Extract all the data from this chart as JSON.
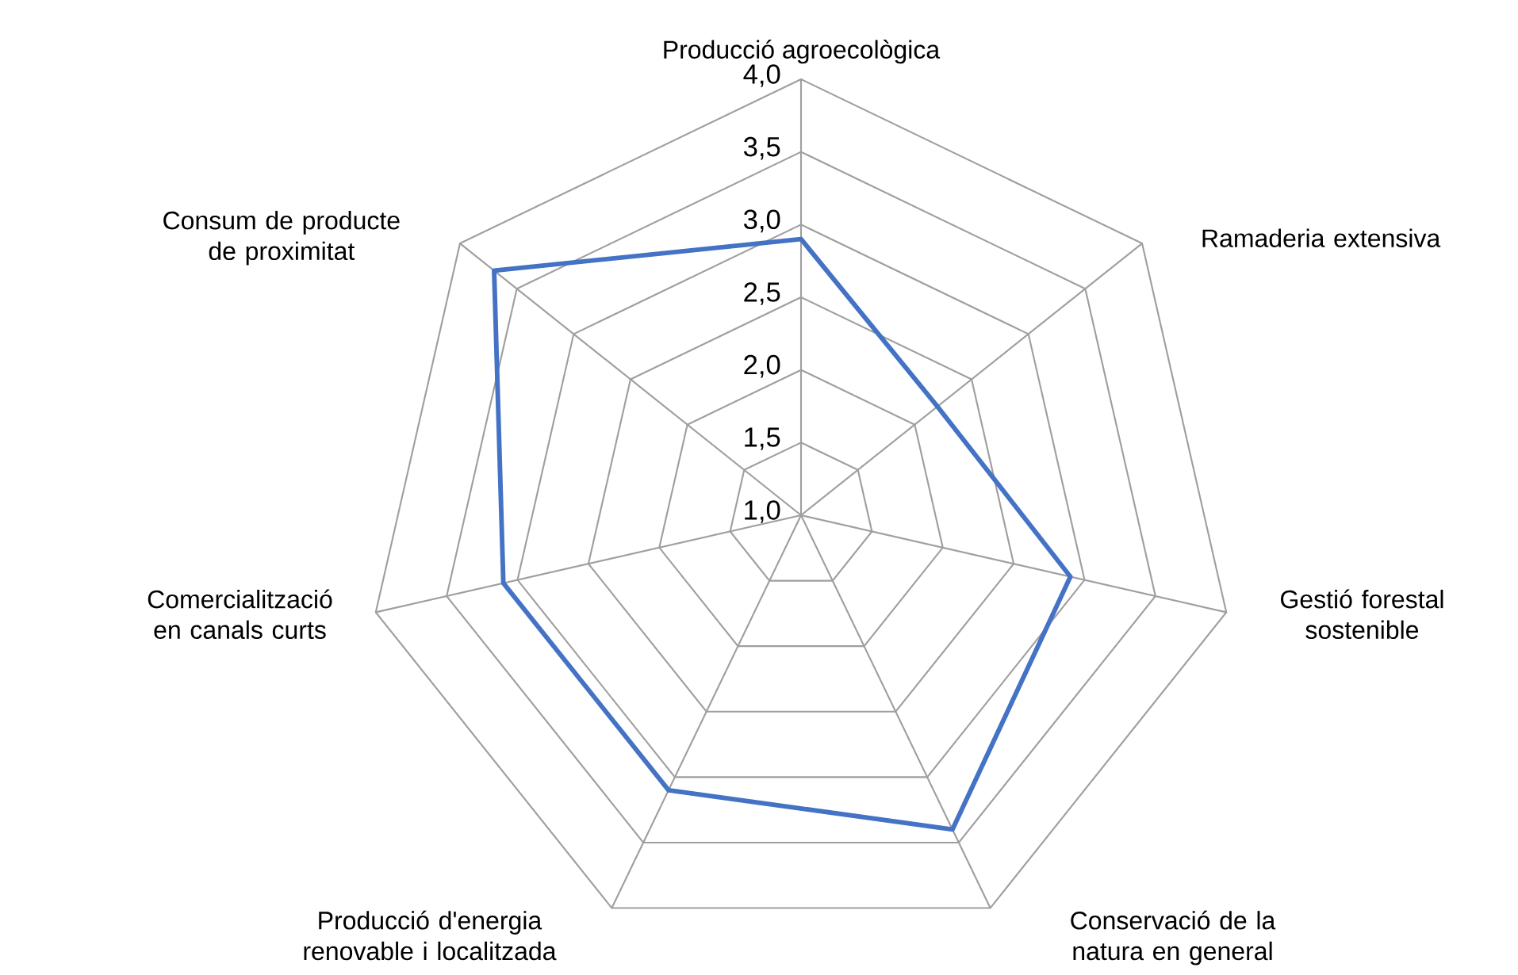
{
  "chart_data": {
    "type": "radar",
    "categories": [
      "Producció agroecològica",
      "Ramaderia extensiva",
      "Gestió forestal sostenible",
      "Conservació de la natura en general",
      "Producció d'energia renovable i localitzada",
      "Comercialització en canals curts",
      "Consum de producte de proximitat"
    ],
    "series": [
      {
        "color": "#4472c4",
        "values": [
          2.9,
          2.2,
          2.9,
          3.4,
          3.1,
          3.1,
          3.7
        ]
      }
    ],
    "ylim": [
      1.0,
      4.0
    ],
    "yticks": [
      {
        "value": 1.0,
        "label": "1,0"
      },
      {
        "value": 1.5,
        "label": "1,5"
      },
      {
        "value": 2.0,
        "label": "2,0"
      },
      {
        "value": 2.5,
        "label": "2,5"
      },
      {
        "value": 3.0,
        "label": "3,0"
      },
      {
        "value": 3.5,
        "label": "3,5"
      },
      {
        "value": 4.0,
        "label": "4,0"
      }
    ],
    "grid": true,
    "marker": "none"
  }
}
